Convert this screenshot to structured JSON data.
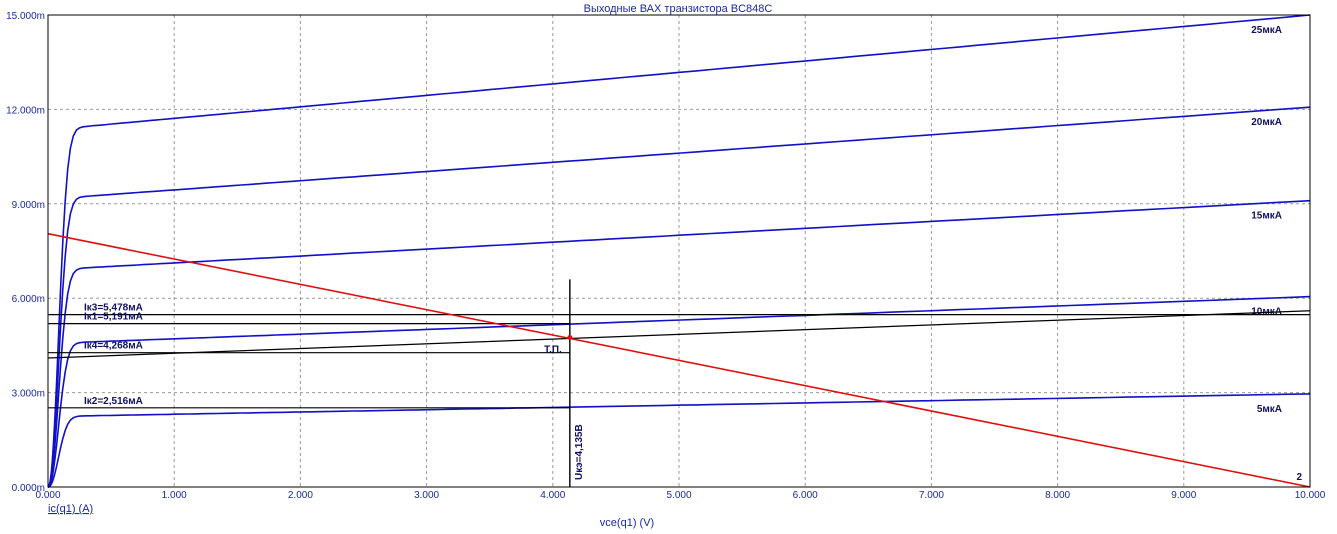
{
  "colors": {
    "curve": "#1010c8",
    "load_line": "#e01010",
    "annotation": "#000000",
    "grid": "#9a9a9a",
    "text": "#1a2a9a"
  },
  "chart_data": {
    "type": "line",
    "title": "Выходные ВАХ транзистора BC848C",
    "xlabel": "vce(q1) (V)",
    "ylabel": "ic(q1) (A)",
    "xlim": [
      0,
      10
    ],
    "ylim": [
      0,
      0.015
    ],
    "grid": true,
    "x_ticks": [
      "0.000",
      "1.000",
      "2.000",
      "3.000",
      "4.000",
      "5.000",
      "6.000",
      "7.000",
      "8.000",
      "9.000",
      "10.000"
    ],
    "y_ticks": [
      "0.000m",
      "3.000m",
      "6.000m",
      "9.000m",
      "12.000m",
      "15.000m"
    ],
    "series": [
      {
        "name": "5мкА",
        "knee_v": 0.2,
        "i_sat": 0.00224,
        "i_end": 0.00296
      },
      {
        "name": "10мкА",
        "knee_v": 0.2,
        "i_sat": 0.00456,
        "i_end": 0.00605
      },
      {
        "name": "15мкА",
        "knee_v": 0.2,
        "i_sat": 0.0069,
        "i_end": 0.0091
      },
      {
        "name": "20мкА",
        "knee_v": 0.2,
        "i_sat": 0.00915,
        "i_end": 0.01207
      },
      {
        "name": "25мкА",
        "knee_v": 0.2,
        "i_sat": 0.01135,
        "i_end": 0.015
      }
    ],
    "load_line": {
      "points": [
        [
          0,
          0.00805
        ],
        [
          10,
          0.0
        ]
      ],
      "label": "2"
    },
    "operating_point": {
      "x": 4.135,
      "y": 0.00475,
      "label": "Т.П."
    },
    "annotations": [
      {
        "label": "Iк3=5,478мА",
        "y": 0.005478,
        "x_end": 4.135
      },
      {
        "label": "Iк1=5,191мА",
        "y": 0.005191,
        "x_end": 4.135
      },
      {
        "label": "Iк4=4,268мА",
        "y": 0.004268,
        "x_end": 4.135
      },
      {
        "label": "Iк2=2,516мА",
        "y": 0.002516,
        "x_end": 4.135
      }
    ],
    "vertical_marker": {
      "x": 4.135,
      "label": "Uкэ=4,135В",
      "y_top": 0.0066
    },
    "slope_line": {
      "points": [
        [
          0,
          0.0041
        ],
        [
          10,
          0.0056
        ]
      ]
    }
  }
}
